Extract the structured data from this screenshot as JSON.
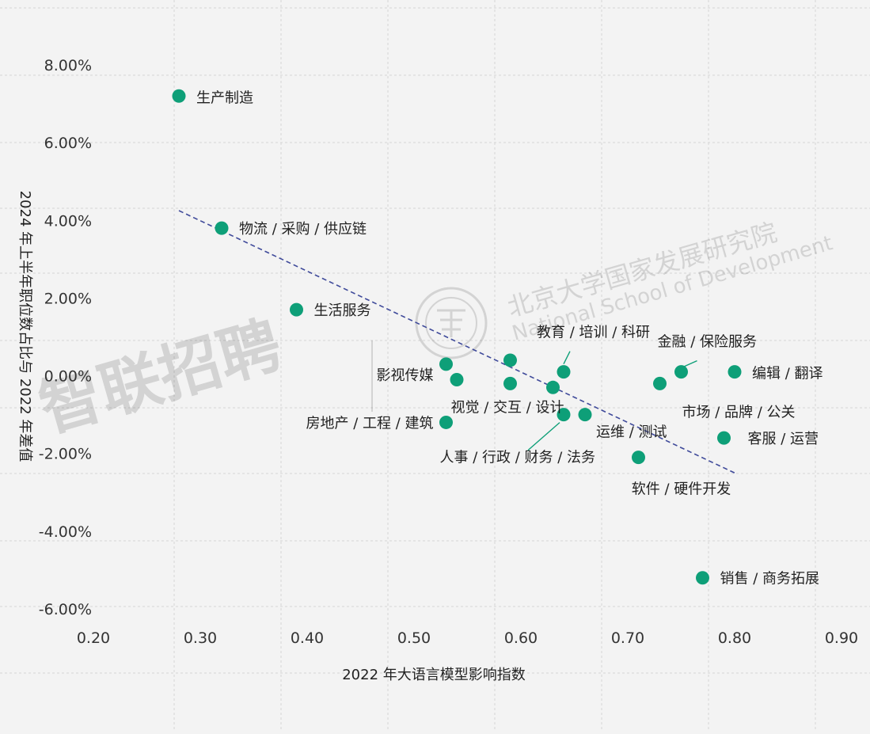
{
  "chart_data": {
    "type": "scatter",
    "title": "",
    "xlabel": "2022 年大语言模型影响指数",
    "ylabel": "2024 年上半年职位数占比与 2022 年差值",
    "xlim": [
      0.2,
      0.9
    ],
    "ylim": [
      -6.0,
      8.0
    ],
    "x_ticks": [
      "0.20",
      "0.30",
      "0.40",
      "0.50",
      "0.60",
      "0.70",
      "0.80",
      "0.90"
    ],
    "y_ticks": [
      "8.00%",
      "6.00%",
      "4.00%",
      "2.00%",
      "0.00%",
      "-2.00%",
      "-4.00%",
      "-6.00%"
    ],
    "grid": true,
    "marker_color": "#0e9f78",
    "trendline": {
      "style": "dashed",
      "color": "#3f4a9a",
      "x": [
        0.28,
        0.8
      ],
      "y": [
        4.25,
        -2.5
      ]
    },
    "points": [
      {
        "label": "生产制造",
        "x": 0.28,
        "y": 7.2
      },
      {
        "label": "物流 / 采购 / 供应链",
        "x": 0.32,
        "y": 3.8
      },
      {
        "label": "生活服务",
        "x": 0.39,
        "y": 1.7
      },
      {
        "label": "影视传媒",
        "x": 0.53,
        "y": 0.3
      },
      {
        "label": "",
        "x": 0.54,
        "y": -0.1
      },
      {
        "label": "房地产 / 工程 / 建筑",
        "x": 0.53,
        "y": -1.2
      },
      {
        "label": "",
        "x": 0.59,
        "y": 0.4
      },
      {
        "label": "视觉 / 交互 / 设计",
        "x": 0.59,
        "y": -0.2
      },
      {
        "label": "教育 / 培训 / 科研",
        "x": 0.64,
        "y": 0.1
      },
      {
        "label": "",
        "x": 0.63,
        "y": -0.3
      },
      {
        "label": "人事 / 行政 / 财务 / 法务",
        "x": 0.64,
        "y": -1.0
      },
      {
        "label": "运维 / 测试",
        "x": 0.66,
        "y": -1.0
      },
      {
        "label": "软件 / 硬件开发",
        "x": 0.71,
        "y": -2.1
      },
      {
        "label": "市场 / 品牌 / 公关",
        "x": 0.73,
        "y": -0.2
      },
      {
        "label": "金融 / 保险服务",
        "x": 0.75,
        "y": 0.1
      },
      {
        "label": "编辑 / 翻译",
        "x": 0.8,
        "y": 0.1
      },
      {
        "label": "客服 / 运营",
        "x": 0.79,
        "y": -1.6
      },
      {
        "label": "销售 / 商务拓展",
        "x": 0.77,
        "y": -5.2
      }
    ]
  },
  "watermark": {
    "brand": "智联招聘",
    "institution": "北京大学国家发展研究院",
    "institution_en": "National School of Development",
    "seal_text": "PEKING UNIVERSITY"
  }
}
